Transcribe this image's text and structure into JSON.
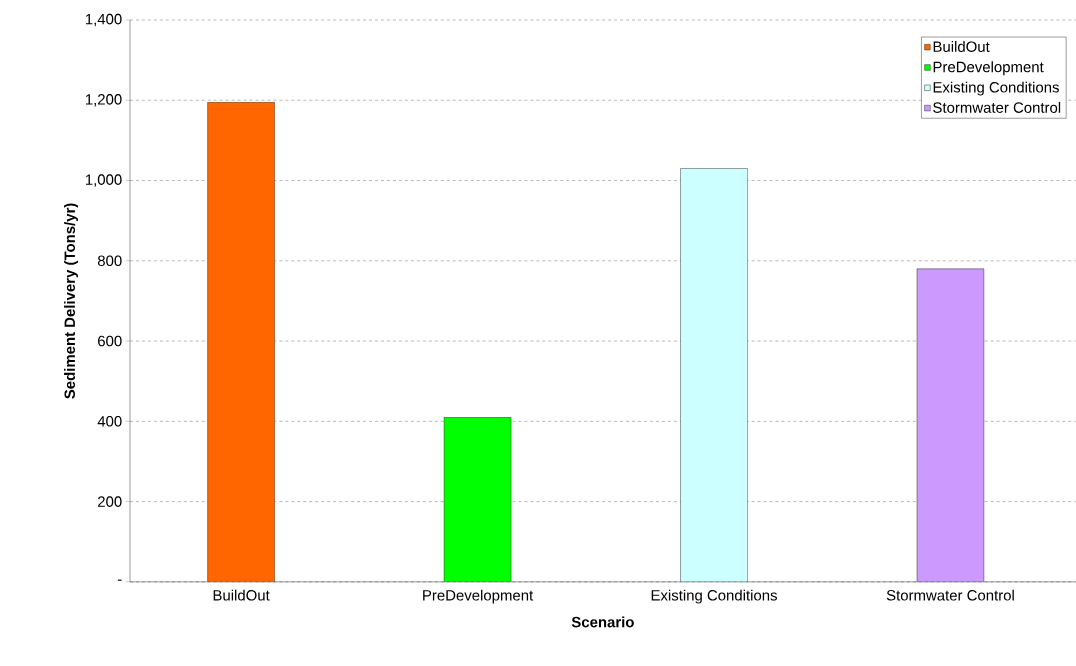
{
  "chart_data": {
    "type": "bar",
    "xlabel": "Scenario",
    "ylabel": "Sediment Delivery (Tons/yr)",
    "categories": [
      "BuildOut",
      "PreDevelopment",
      "Existing Conditions",
      "Stormwater Control"
    ],
    "series": [
      {
        "name": "BuildOut",
        "color": "#ff6600",
        "values": [
          1195,
          null,
          null,
          null
        ]
      },
      {
        "name": "PreDevelopment",
        "color": "#00ff00",
        "values": [
          null,
          410,
          null,
          null
        ]
      },
      {
        "name": "Existing Conditions",
        "color": "#ccffff",
        "values": [
          null,
          null,
          1030,
          null
        ]
      },
      {
        "name": "Stormwater Control",
        "color": "#cc99ff",
        "values": [
          null,
          null,
          null,
          780
        ]
      }
    ],
    "ylim": [
      0,
      1400
    ],
    "yticks": [
      {
        "value": 0,
        "label": "-"
      },
      {
        "value": 200,
        "label": "200"
      },
      {
        "value": 400,
        "label": "400"
      },
      {
        "value": 600,
        "label": "600"
      },
      {
        "value": 800,
        "label": "800"
      },
      {
        "value": 1000,
        "label": "1,000"
      },
      {
        "value": 1200,
        "label": "1,200"
      },
      {
        "value": 1400,
        "label": "1,400"
      }
    ],
    "grid": "y",
    "legend": "top right"
  }
}
